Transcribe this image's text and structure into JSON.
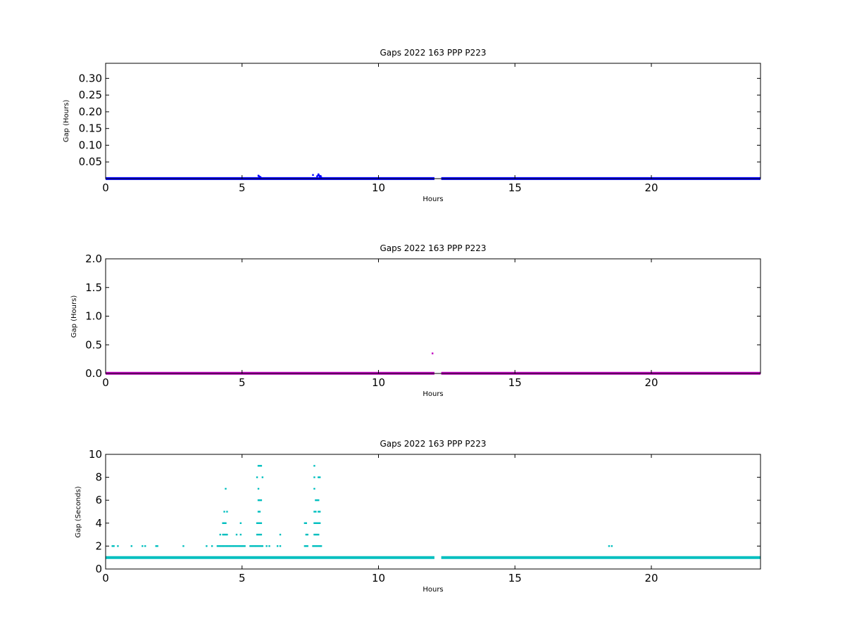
{
  "chart_data": [
    {
      "type": "scatter",
      "title": "Gaps 2022 163 PPP  P223",
      "xlabel": "Hours",
      "ylabel": "Gap (Hours)",
      "xlim": [
        0,
        24
      ],
      "ylim": [
        0,
        0.345
      ],
      "xticks": [
        0,
        5,
        10,
        15,
        20
      ],
      "xtick_labels": [
        "0",
        "5",
        "10",
        "15",
        "20"
      ],
      "yticks": [
        0.05,
        0.1,
        0.15,
        0.2,
        0.25,
        0.3
      ],
      "ytick_labels": [
        "0.05",
        "0.10",
        "0.15",
        "0.20",
        "0.25",
        "0.30"
      ],
      "grid": false,
      "legend": "none",
      "color": "#0000ff",
      "baseline": {
        "y": 0.0003,
        "x_ranges": [
          [
            0,
            12.05
          ],
          [
            12.3,
            24
          ]
        ]
      },
      "series": [
        {
          "x": [
            5.6,
            5.62,
            5.65,
            5.68,
            7.6,
            7.75,
            7.78,
            7.8,
            7.82,
            7.85,
            7.88,
            7.9
          ],
          "y": [
            0.009,
            0.007,
            0.006,
            0.004,
            0.011,
            0.007,
            0.009,
            0.013,
            0.01,
            0.006,
            0.008,
            0.004
          ]
        }
      ]
    },
    {
      "type": "scatter",
      "title": "Gaps 2022 163 PPP  P223",
      "xlabel": "Hours",
      "ylabel": "Gap (Hours)",
      "xlim": [
        0,
        24
      ],
      "ylim": [
        0,
        2.0
      ],
      "xticks": [
        0,
        5,
        10,
        15,
        20
      ],
      "xtick_labels": [
        "0",
        "5",
        "10",
        "15",
        "20"
      ],
      "yticks": [
        0.0,
        0.5,
        1.0,
        1.5,
        2.0
      ],
      "ytick_labels": [
        "0.0",
        "0.5",
        "1.0",
        "1.5",
        "2.0"
      ],
      "grid": false,
      "legend": "none",
      "color": "#bf00bf",
      "baseline": {
        "y": 0.003,
        "x_ranges": [
          [
            0,
            12.05
          ],
          [
            12.3,
            24
          ]
        ]
      },
      "series": [
        {
          "x": [
            11.98,
            5.6,
            7.8
          ],
          "y": [
            0.35,
            0.008,
            0.01
          ]
        }
      ]
    },
    {
      "type": "scatter",
      "title": "Gaps 2022 163 PPP  P223",
      "xlabel": "Hours",
      "ylabel": "Gap (Seconds)",
      "xlim": [
        0,
        24
      ],
      "ylim": [
        0,
        10
      ],
      "xticks": [
        0,
        5,
        10,
        15,
        20
      ],
      "xtick_labels": [
        "0",
        "5",
        "10",
        "15",
        "20"
      ],
      "yticks": [
        0,
        2,
        4,
        6,
        8,
        10
      ],
      "ytick_labels": [
        "0",
        "2",
        "4",
        "6",
        "8",
        "10"
      ],
      "grid": false,
      "legend": "none",
      "color": "#00bfbf",
      "baseline": {
        "y": 1,
        "x_ranges": [
          [
            0,
            12.05
          ],
          [
            12.3,
            24
          ]
        ]
      },
      "series": [
        {
          "x": [
            0.25,
            0.3,
            0.45,
            0.95,
            1.35,
            1.45,
            1.85,
            1.9,
            2.85,
            3.7,
            3.9,
            4.1,
            4.15,
            4.2,
            4.25,
            4.3,
            4.35,
            4.4,
            4.45,
            4.5,
            4.55,
            4.6,
            4.65,
            4.7,
            4.75,
            4.8,
            4.85,
            4.9,
            4.95,
            5.0,
            5.05,
            5.1,
            5.3,
            5.35,
            5.4,
            5.45,
            5.5,
            5.55,
            5.6,
            5.65,
            5.7,
            5.75,
            5.9,
            6.0,
            6.3,
            6.4,
            7.3,
            7.35,
            7.4,
            7.6,
            7.65,
            7.7,
            7.75,
            7.8,
            7.85,
            7.9,
            18.45,
            18.55,
            4.2,
            4.3,
            4.35,
            4.4,
            4.45,
            4.8,
            4.95,
            5.55,
            5.6,
            5.65,
            5.7,
            6.4,
            7.35,
            7.4,
            7.65,
            7.7,
            7.75,
            7.8,
            4.3,
            4.35,
            4.4,
            4.95,
            5.55,
            5.6,
            5.65,
            5.7,
            7.3,
            7.35,
            7.65,
            7.7,
            7.75,
            7.8,
            7.85,
            4.35,
            4.45,
            5.6,
            5.65,
            7.65,
            7.7,
            7.8,
            7.85,
            5.6,
            5.65,
            5.7,
            7.7,
            7.75,
            7.8,
            4.4,
            5.6,
            7.65,
            5.55,
            5.75,
            7.65,
            7.8,
            7.85,
            5.6,
            5.65,
            5.7,
            7.65
          ],
          "y": [
            2,
            2,
            2,
            2,
            2,
            2,
            2,
            2,
            2,
            2,
            2,
            2,
            2,
            2,
            2,
            2,
            2,
            2,
            2,
            2,
            2,
            2,
            2,
            2,
            2,
            2,
            2,
            2,
            2,
            2,
            2,
            2,
            2,
            2,
            2,
            2,
            2,
            2,
            2,
            2,
            2,
            2,
            2,
            2,
            2,
            2,
            2,
            2,
            2,
            2,
            2,
            2,
            2,
            2,
            2,
            2,
            2,
            2,
            3,
            3,
            3,
            3,
            3,
            3,
            3,
            3,
            3,
            3,
            3,
            3,
            3,
            3,
            3,
            3,
            3,
            3,
            4,
            4,
            4,
            4,
            4,
            4,
            4,
            4,
            4,
            4,
            4,
            4,
            4,
            4,
            4,
            5,
            5,
            5,
            5,
            5,
            5,
            5,
            5,
            6,
            6,
            6,
            6,
            6,
            6,
            7,
            7,
            7,
            8,
            8,
            8,
            8,
            8,
            9,
            9,
            9,
            9
          ]
        }
      ]
    }
  ]
}
